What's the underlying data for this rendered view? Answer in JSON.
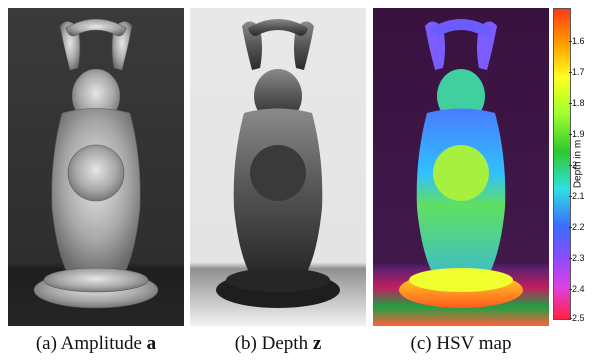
{
  "captions": {
    "a_prefix": "(a) Amplitude ",
    "a_symbol": "a",
    "b_prefix": "(b) Depth ",
    "b_symbol": "z",
    "c": "(c) HSV map"
  },
  "colorbar": {
    "label": "Depth in m",
    "ticks": [
      "1.6",
      "1.7",
      "1.8",
      "1.9",
      "2",
      "2.1",
      "2.2",
      "2.3",
      "2.4",
      "2.5"
    ],
    "range": [
      1.55,
      2.5
    ],
    "colors": [
      "#ff3a18",
      "#ffa500",
      "#ffff20",
      "#9cff2e",
      "#2ec82e",
      "#2ee0e0",
      "#3a6cff",
      "#8a4cff",
      "#e040e0",
      "#ff2040"
    ]
  }
}
